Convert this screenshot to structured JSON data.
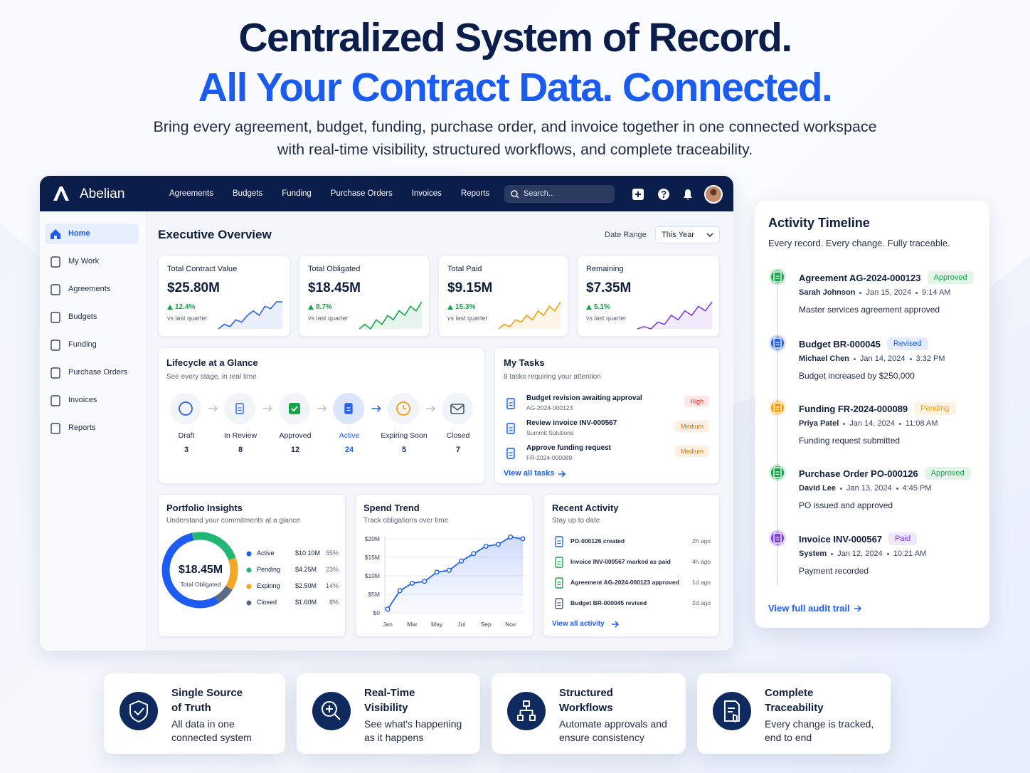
{
  "hero": {
    "title": "Centralized System of Record.",
    "title_accent": "All Your Contract Data. Connected.",
    "subtitle": "Bring every agreement, budget, funding, purchase order, and invoice together in one connected workspace with real-time visibility, structured workflows, and complete traceability."
  },
  "app": {
    "brand": "Abelian",
    "nav": [
      "Agreements",
      "Budgets",
      "Funding",
      "Purchase Orders",
      "Invoices",
      "Reports"
    ],
    "search": "Search...",
    "sidebar": [
      "Home",
      "My Work",
      "Agreements",
      "Budgets",
      "Funding",
      "Purchase Orders",
      "Invoices",
      "Reports"
    ],
    "page_title": "Executive Overview",
    "date_range_label": "Date Range",
    "date_range": "This Year"
  },
  "kpis": [
    {
      "label": "Total Contract Value",
      "value": "$25.80M",
      "change": "12.4%",
      "note": "vs last quarter",
      "color": "#2563eb",
      "spark": [
        2,
        3,
        2.5,
        4,
        3.5,
        5,
        6,
        5,
        7,
        6.5,
        8,
        8
      ]
    },
    {
      "label": "Total Obligated",
      "value": "$18.45M",
      "change": "8.7%",
      "note": "vs last quarter",
      "color": "#16a34a",
      "spark": [
        2,
        3,
        2,
        4,
        3,
        5,
        4,
        6,
        5,
        7,
        6,
        8
      ]
    },
    {
      "label": "Total Paid",
      "value": "$9.15M",
      "change": "15.3%",
      "note": "vs last quarter",
      "color": "#f59e0b",
      "spark": [
        1,
        2,
        1.5,
        3,
        2.5,
        4,
        3,
        5,
        4,
        6,
        5,
        7
      ]
    },
    {
      "label": "Remaining",
      "value": "$7.35M",
      "change": "5.1%",
      "note": "vs last quarter",
      "color": "#7c3aed",
      "spark": [
        2,
        2.5,
        2,
        3.5,
        3,
        5,
        4,
        6,
        5,
        7,
        6,
        8
      ]
    }
  ],
  "lifecycle": {
    "title": "Lifecycle at a Glance",
    "subtitle": "See every stage, in real time",
    "selected_index": 3,
    "stages": [
      {
        "label": "Draft",
        "count": 3,
        "color": "#2563eb"
      },
      {
        "label": "In Review",
        "count": 8,
        "color": "#2563eb"
      },
      {
        "label": "Approved",
        "count": 12,
        "color": "#16a34a"
      },
      {
        "label": "Active",
        "count": 24,
        "color": "#2563eb"
      },
      {
        "label": "Expiring Soon",
        "count": 5,
        "color": "#f59e0b"
      },
      {
        "label": "Closed",
        "count": 7,
        "color": "#475569"
      }
    ]
  },
  "tasks": {
    "title": "My Tasks",
    "subtitle": "8 tasks requiring your attention",
    "items": [
      {
        "title": "Budget revision awaiting approval",
        "ref": "AG-2024-000123",
        "priority": "High"
      },
      {
        "title": "Review invoice INV-000567",
        "ref": "Summit Solutions",
        "priority": "Medium"
      },
      {
        "title": "Approve funding request",
        "ref": "FR-2024-000089",
        "priority": "Medium"
      }
    ],
    "link": "View all tasks"
  },
  "portfolio": {
    "type": "pie",
    "title": "Portfolio Insights",
    "subtitle": "Understand your commitments at a glance",
    "center_value": "$18.45M",
    "center_label": "Total Obligated",
    "categories": [
      "Active",
      "Pending",
      "Expiring",
      "Closed"
    ],
    "amounts": [
      "$10.10M",
      "$4.25M",
      "$2.50M",
      "$1.60M"
    ],
    "values": [
      55,
      23,
      14,
      8
    ],
    "value_labels": [
      "55%",
      "23%",
      "14%",
      "8%"
    ],
    "colors": [
      "#1d5cf2",
      "#22b573",
      "#f5a623",
      "#5a6b85"
    ]
  },
  "spend": {
    "type": "line",
    "title": "Spend Trend",
    "subtitle": "Track obligations over time",
    "categories": [
      "Jan",
      null,
      "Mar",
      null,
      "May",
      null,
      "Jul",
      null,
      "Sep",
      null,
      "Nov",
      null
    ],
    "values": [
      1,
      6,
      8,
      8.5,
      11,
      11.5,
      14,
      16,
      18,
      18.5,
      20.5,
      20
    ],
    "color": "#2563eb",
    "ylim": [
      0,
      21
    ],
    "yticks": [
      {
        "value": 0,
        "label": "$0"
      },
      {
        "value": 5,
        "label": "$5M"
      },
      {
        "value": 10,
        "label": "$10M"
      },
      {
        "value": 15,
        "label": "$15M"
      },
      {
        "value": 20,
        "label": "$20M"
      }
    ],
    "grid": true
  },
  "activity": {
    "title": "Recent Activity",
    "subtitle": "Stay up to date",
    "items": [
      {
        "text": "PO-000126 created",
        "time": "2h ago",
        "color": "#2563eb"
      },
      {
        "text": "Invoice INV-000567 marked as paid",
        "time": "4h ago",
        "color": "#16a34a"
      },
      {
        "text": "Agreement AG-2024-000123 approved",
        "time": "1d ago",
        "color": "#16a34a"
      },
      {
        "text": "Budget BR-000045 revised",
        "time": "2d ago",
        "color": "#475569"
      }
    ],
    "link": "View all activity"
  },
  "timeline": {
    "title": "Activity Timeline",
    "subtitle": "Every record. Every change. Fully traceable.",
    "items": [
      {
        "title": "Agreement AG-2024-000123",
        "status": "Approved",
        "color": "#16a34a",
        "who": "Sarah Johnson",
        "date": "Jan 15, 2024",
        "time": "9:14 AM",
        "desc": "Master services agreement approved"
      },
      {
        "title": "Budget BR-000045",
        "status": "Revised",
        "color": "#2563eb",
        "who": "Michael Chen",
        "date": "Jan 14, 2024",
        "time": "3:32 PM",
        "desc": "Budget increased by $250,000"
      },
      {
        "title": "Funding FR-2024-000089",
        "status": "Pending",
        "color": "#f59e0b",
        "who": "Priya Patel",
        "date": "Jan 14, 2024",
        "time": "11:08 AM",
        "desc": "Funding request submitted"
      },
      {
        "title": "Purchase Order PO-000126",
        "status": "Approved",
        "color": "#16a34a",
        "who": "David Lee",
        "date": "Jan 13, 2024",
        "time": "4:45 PM",
        "desc": "PO issued and approved"
      },
      {
        "title": "Invoice INV-000567",
        "status": "Paid",
        "color": "#7c3aed",
        "who": "System",
        "date": "Jan 12, 2024",
        "time": "10:21 AM",
        "desc": "Payment recorded"
      }
    ],
    "link": "View full audit trail"
  },
  "features": [
    {
      "title": "Single Source of Truth",
      "desc": "All data in one connected system"
    },
    {
      "title": "Real-Time Visibility",
      "desc": "See what's happening as it happens"
    },
    {
      "title": "Structured Workflows",
      "desc": "Automate approvals and ensure consistency"
    },
    {
      "title": "Complete Traceability",
      "desc": "Every change is tracked, end to end"
    }
  ]
}
